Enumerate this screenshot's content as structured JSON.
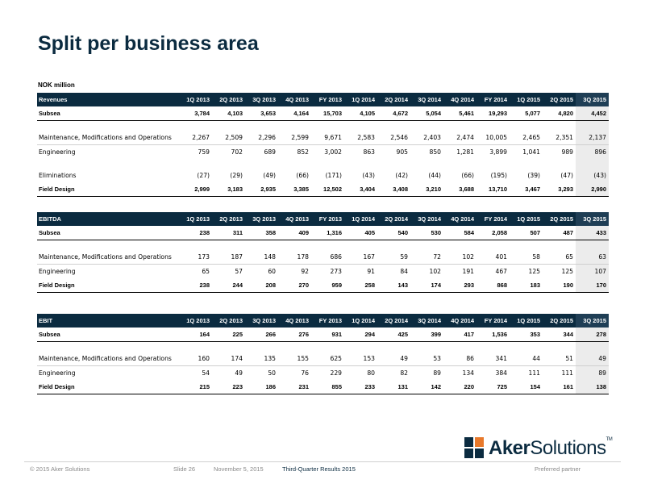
{
  "title": "Split per business area",
  "unit": "NOK million",
  "columns": [
    "1Q 2013",
    "2Q 2013",
    "3Q 2013",
    "4Q 2013",
    "FY 2013",
    "1Q 2014",
    "2Q 2014",
    "3Q 2014",
    "4Q 2014",
    "FY 2014",
    "1Q 2015",
    "2Q 2015",
    "3Q 2015"
  ],
  "tables": [
    {
      "header": "Revenues",
      "rows": [
        {
          "label": "Subsea",
          "style": "bold",
          "values": [
            "3,784",
            "4,103",
            "3,653",
            "4,164",
            "15,703",
            "4,105",
            "4,672",
            "5,054",
            "5,461",
            "19,293",
            "5,077",
            "4,820",
            "4,452"
          ]
        },
        {
          "gap": true
        },
        {
          "label": "Maintenance, Modifications and Operations",
          "style": "plain",
          "values": [
            "2,267",
            "2,509",
            "2,296",
            "2,599",
            "9,671",
            "2,583",
            "2,546",
            "2,403",
            "2,474",
            "10,005",
            "2,465",
            "2,351",
            "2,137"
          ]
        },
        {
          "label": "Engineering",
          "style": "plain",
          "values": [
            "759",
            "702",
            "689",
            "852",
            "3,002",
            "863",
            "905",
            "850",
            "1,281",
            "3,899",
            "1,041",
            "989",
            "896"
          ]
        },
        {
          "gap": true
        },
        {
          "label": "Eliminations",
          "style": "plain",
          "values": [
            "(27)",
            "(29)",
            "(49)",
            "(66)",
            "(171)",
            "(43)",
            "(42)",
            "(44)",
            "(66)",
            "(195)",
            "(39)",
            "(47)",
            "(43)"
          ]
        },
        {
          "label": "Field Design",
          "style": "bold",
          "values": [
            "2,999",
            "3,183",
            "2,935",
            "3,385",
            "12,502",
            "3,404",
            "3,408",
            "3,210",
            "3,688",
            "13,710",
            "3,467",
            "3,293",
            "2,990"
          ]
        }
      ]
    },
    {
      "header": "EBITDA",
      "rows": [
        {
          "label": "Subsea",
          "style": "bold",
          "values": [
            "238",
            "311",
            "358",
            "409",
            "1,316",
            "405",
            "540",
            "530",
            "584",
            "2,058",
            "507",
            "487",
            "433"
          ]
        },
        {
          "gap": true
        },
        {
          "label": "Maintenance, Modifications and Operations",
          "style": "plain",
          "values": [
            "173",
            "187",
            "148",
            "178",
            "686",
            "167",
            "59",
            "72",
            "102",
            "401",
            "58",
            "65",
            "63"
          ]
        },
        {
          "label": "Engineering",
          "style": "plain",
          "values": [
            "65",
            "57",
            "60",
            "92",
            "273",
            "91",
            "84",
            "102",
            "191",
            "467",
            "125",
            "125",
            "107"
          ]
        },
        {
          "label": "Field Design",
          "style": "bold",
          "values": [
            "238",
            "244",
            "208",
            "270",
            "959",
            "258",
            "143",
            "174",
            "293",
            "868",
            "183",
            "190",
            "170"
          ]
        }
      ]
    },
    {
      "header": "EBIT",
      "rows": [
        {
          "label": "Subsea",
          "style": "bold",
          "values": [
            "164",
            "225",
            "266",
            "276",
            "931",
            "294",
            "425",
            "399",
            "417",
            "1,536",
            "353",
            "344",
            "278"
          ]
        },
        {
          "gap": true
        },
        {
          "label": "Maintenance, Modifications and Operations",
          "style": "plain",
          "values": [
            "160",
            "174",
            "135",
            "155",
            "625",
            "153",
            "49",
            "53",
            "86",
            "341",
            "44",
            "51",
            "49"
          ]
        },
        {
          "label": "Engineering",
          "style": "plain",
          "values": [
            "54",
            "49",
            "50",
            "76",
            "229",
            "80",
            "82",
            "89",
            "134",
            "384",
            "111",
            "111",
            "89"
          ]
        },
        {
          "label": "Field Design",
          "style": "bold",
          "values": [
            "215",
            "223",
            "186",
            "231",
            "855",
            "233",
            "131",
            "142",
            "220",
            "725",
            "154",
            "161",
            "138"
          ]
        }
      ]
    }
  ],
  "footer": {
    "copyright": "© 2015 Aker Solutions",
    "slide": "Slide 26",
    "date": "November 5, 2015",
    "event": "Third-Quarter Results 2015",
    "tagline": "Preferred partner"
  },
  "logo": {
    "part1": "Aker",
    "part2": "Solutions",
    "tm": "TM"
  },
  "colors": {
    "navy": "#0b2b40",
    "highlight": "#ececec",
    "logo_orange": "#e8792b"
  }
}
